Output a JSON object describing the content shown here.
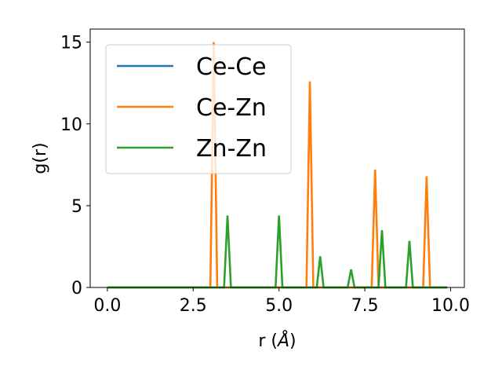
{
  "chart_data": {
    "type": "line",
    "xlabel": "r",
    "xlabel_unit": "Å",
    "ylabel": "g(r)",
    "xlim": [
      -0.5,
      10.4
    ],
    "ylim": [
      0,
      15.8
    ],
    "xticks": [
      "0.0",
      "2.5",
      "5.0",
      "7.5",
      "10.0"
    ],
    "xtick_values": [
      0,
      2.5,
      5,
      7.5,
      10
    ],
    "yticks": [
      "0",
      "5",
      "10",
      "15"
    ],
    "ytick_values": [
      0,
      5,
      10,
      15
    ],
    "grid": false,
    "legend_position": "top-left",
    "series": [
      {
        "name": "Ce-Ce",
        "color": "#1f77b4",
        "x": [
          0.0,
          9.9
        ],
        "y": [
          0.0,
          0.0
        ]
      },
      {
        "name": "Ce-Zn",
        "color": "#ff7f0e",
        "x": [
          0.0,
          3.0,
          3.1,
          3.2,
          5.8,
          5.9,
          6.0,
          7.7,
          7.8,
          7.9,
          9.2,
          9.3,
          9.4,
          9.9
        ],
        "y": [
          0.0,
          0.0,
          15.0,
          0.0,
          0.0,
          12.6,
          0.0,
          0.0,
          7.2,
          0.0,
          0.0,
          6.8,
          0.0,
          0.0
        ]
      },
      {
        "name": "Zn-Zn",
        "color": "#2ca02c",
        "x": [
          0.0,
          3.4,
          3.5,
          3.6,
          4.9,
          5.0,
          5.1,
          6.1,
          6.2,
          6.3,
          7.0,
          7.1,
          7.2,
          7.9,
          8.0,
          8.1,
          8.7,
          8.8,
          8.9,
          9.9
        ],
        "y": [
          0.0,
          0.0,
          4.4,
          0.0,
          0.0,
          4.4,
          0.0,
          0.0,
          1.9,
          0.0,
          0.0,
          1.1,
          0.0,
          0.0,
          3.5,
          0.0,
          0.0,
          2.85,
          0.0,
          0.0
        ]
      }
    ]
  }
}
